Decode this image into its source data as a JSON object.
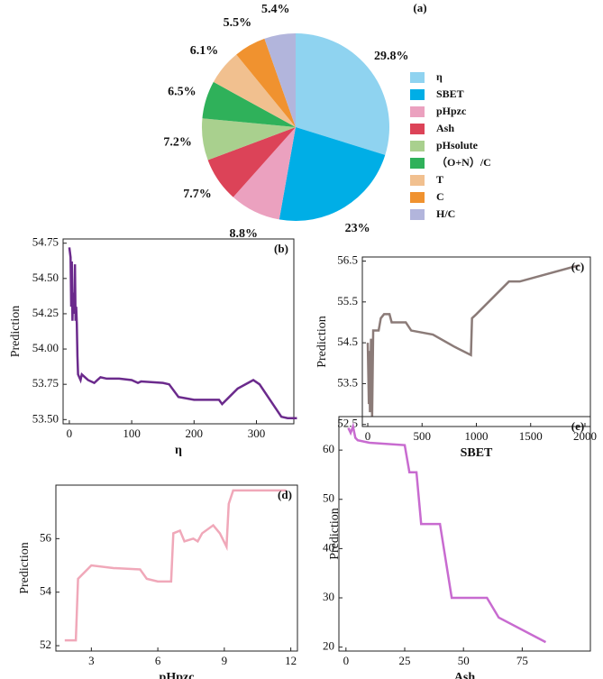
{
  "chart_data": [
    {
      "type": "pie",
      "title": "(a)",
      "categories": [
        "η",
        "SBET",
        "pHpzc",
        "Ash",
        "pHsolute",
        "（O+N）/C",
        "T",
        "C",
        "H/C"
      ],
      "values": [
        29.8,
        23,
        8.8,
        7.7,
        7.2,
        6.5,
        6.1,
        5.5,
        5.4
      ],
      "value_labels": [
        "29.8%",
        "23%",
        "8.8%",
        "7.7%",
        "7.2%",
        "6.5%",
        "6.1%",
        "5.5%",
        "5.4%"
      ],
      "colors": [
        "#8fd3f0",
        "#00aee6",
        "#eba1bf",
        "#dc4358",
        "#a9d08e",
        "#2fb15a",
        "#f1c08f",
        "#f0922f",
        "#b2b5dc"
      ]
    },
    {
      "type": "line",
      "title": "(b)",
      "xlabel": "η",
      "ylabel": "Prediction",
      "color": "#6b2a8c",
      "x": [
        0,
        2,
        3,
        4,
        5,
        6,
        7,
        8,
        9,
        10,
        11,
        12,
        13,
        14,
        16,
        18,
        20,
        25,
        30,
        40,
        45,
        50,
        60,
        80,
        100,
        110,
        115,
        150,
        160,
        175,
        200,
        240,
        245,
        270,
        295,
        305,
        340,
        350,
        365
      ],
      "values": [
        54.72,
        54.65,
        54.3,
        54.62,
        54.2,
        54.4,
        54.35,
        54.25,
        54.6,
        54.2,
        54.3,
        54.18,
        53.95,
        53.82,
        53.8,
        53.78,
        53.82,
        53.8,
        53.78,
        53.76,
        53.78,
        53.8,
        53.79,
        53.79,
        53.78,
        53.76,
        53.77,
        53.76,
        53.75,
        53.66,
        53.64,
        53.64,
        53.61,
        53.72,
        53.78,
        53.75,
        53.52,
        53.51,
        53.51
      ],
      "xlim": [
        -10,
        360
      ],
      "ylim": [
        53.47,
        54.78
      ],
      "xticks": [
        0,
        100,
        200,
        300
      ],
      "yticks": [
        {
          "value": 54.75,
          "label": "54.75"
        },
        {
          "value": 54.5,
          "label": "54.50"
        },
        {
          "value": 54.25,
          "label": "54.25"
        },
        {
          "value": 54,
          "label": "54.00"
        },
        {
          "value": 53.75,
          "label": "53.75"
        },
        {
          "value": 53.5,
          "label": "53.50"
        }
      ]
    },
    {
      "type": "line",
      "title": "(c)",
      "xlabel": "SBET",
      "ylabel": "Prediction",
      "color": "#8b7b78",
      "x": [
        0,
        10,
        15,
        20,
        30,
        40,
        50,
        100,
        120,
        150,
        200,
        220,
        350,
        400,
        600,
        800,
        950,
        960,
        1000,
        1300,
        1400,
        1950
      ],
      "values": [
        54.5,
        53.0,
        54.3,
        52.8,
        54.6,
        52.7,
        54.8,
        54.8,
        55.1,
        55.2,
        55.2,
        55.0,
        55.0,
        54.8,
        54.7,
        54.4,
        54.2,
        55.1,
        55.2,
        56.0,
        56.0,
        56.4
      ],
      "xlim": [
        -50,
        2050
      ],
      "ylim": [
        52.45,
        56.6
      ],
      "xticks": [
        0,
        500,
        1000,
        1500,
        2000
      ],
      "yticks": [
        56.5,
        55.5,
        54.5,
        53.5,
        52.5
      ]
    },
    {
      "type": "line",
      "title": "(d)",
      "xlabel": "pHpzc",
      "ylabel": "Prediction",
      "color": "#f0a8b9",
      "x": [
        1.8,
        2.3,
        2.4,
        3,
        4,
        5.2,
        5.5,
        6,
        6.6,
        6.7,
        7,
        7.2,
        7.6,
        7.8,
        8,
        8.5,
        8.8,
        9.1,
        9.2,
        9.4,
        11.8
      ],
      "values": [
        52.2,
        52.2,
        54.5,
        55.0,
        54.9,
        54.85,
        54.5,
        54.4,
        54.4,
        56.2,
        56.3,
        55.9,
        56.0,
        55.9,
        56.2,
        56.5,
        56.2,
        55.7,
        57.3,
        57.8,
        57.8
      ],
      "xlim": [
        1.4,
        12.3
      ],
      "ylim": [
        51.8,
        58
      ],
      "xticks": [
        3,
        6,
        9,
        12
      ],
      "yticks": [
        52,
        54,
        56
      ]
    },
    {
      "type": "line",
      "title": "(e)",
      "xlabel": "Ash",
      "ylabel": "Prediction",
      "color": "#c86bd0",
      "x": [
        1,
        2,
        3,
        4,
        5,
        10,
        25,
        27,
        30,
        32,
        40,
        45,
        60,
        65,
        85
      ],
      "values": [
        64.5,
        63.5,
        64.8,
        62.5,
        62,
        61.5,
        61,
        55.5,
        55.5,
        45,
        45,
        30,
        30,
        26,
        21
      ],
      "xlim": [
        -3,
        104
      ],
      "ylim": [
        19.2,
        66.8
      ],
      "xticks": [
        0,
        25,
        50,
        75
      ],
      "yticks": [
        20,
        30,
        40,
        50,
        60
      ]
    }
  ]
}
